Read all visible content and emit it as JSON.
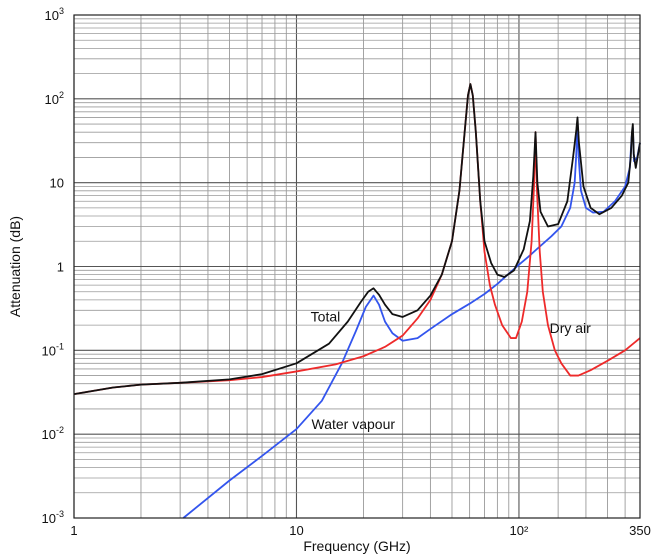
{
  "chart_data": {
    "type": "line",
    "xlabel": "Frequency (GHz)",
    "ylabel": "Attenuation (dB)",
    "x_scale": "log",
    "y_scale": "log",
    "xlim": [
      1,
      350
    ],
    "ylim": [
      0.001,
      1000
    ],
    "grid": true,
    "x_ticks": [
      {
        "value": 1,
        "label": "1"
      },
      {
        "value": 10,
        "label": "10"
      },
      {
        "value": 100,
        "label": "10²"
      },
      {
        "value": 350,
        "label": "350"
      }
    ],
    "y_ticks": [
      {
        "value": 0.001,
        "base": "10",
        "exp": "-3"
      },
      {
        "value": 0.01,
        "base": "10",
        "exp": "-2"
      },
      {
        "value": 0.1,
        "base": "10",
        "exp": "-1"
      },
      {
        "value": 1,
        "base": "1",
        "exp": ""
      },
      {
        "value": 10,
        "base": "10",
        "exp": ""
      },
      {
        "value": 100,
        "base": "10",
        "exp": "2"
      },
      {
        "value": 1000,
        "base": "10",
        "exp": "3"
      }
    ],
    "colors": {
      "total": "#111111",
      "dry_air": "#ee2a2a",
      "water_vapour": "#3355ee",
      "grid": "#9a9a9a",
      "frame": "#222222"
    },
    "series": [
      {
        "name": "Total",
        "key": "total",
        "points": [
          [
            1,
            0.03
          ],
          [
            1.5,
            0.036
          ],
          [
            2,
            0.039
          ],
          [
            3,
            0.041
          ],
          [
            5,
            0.045
          ],
          [
            7,
            0.052
          ],
          [
            10,
            0.07
          ],
          [
            14,
            0.12
          ],
          [
            17,
            0.22
          ],
          [
            19.5,
            0.38
          ],
          [
            21,
            0.5
          ],
          [
            22.2,
            0.55
          ],
          [
            23.5,
            0.46
          ],
          [
            25,
            0.35
          ],
          [
            27,
            0.27
          ],
          [
            30,
            0.25
          ],
          [
            35,
            0.3
          ],
          [
            40,
            0.45
          ],
          [
            45,
            0.8
          ],
          [
            50,
            2
          ],
          [
            54,
            8
          ],
          [
            57,
            40
          ],
          [
            59,
            110
          ],
          [
            60.5,
            150
          ],
          [
            62,
            110
          ],
          [
            64,
            40
          ],
          [
            67,
            6
          ],
          [
            70,
            2
          ],
          [
            75,
            1.1
          ],
          [
            80,
            0.8
          ],
          [
            86,
            0.75
          ],
          [
            95,
            0.9
          ],
          [
            105,
            1.6
          ],
          [
            112,
            3.5
          ],
          [
            116,
            12
          ],
          [
            118.7,
            40
          ],
          [
            121,
            10
          ],
          [
            125,
            4.5
          ],
          [
            135,
            3
          ],
          [
            150,
            3.2
          ],
          [
            165,
            6
          ],
          [
            175,
            20
          ],
          [
            181,
            42
          ],
          [
            183.3,
            60
          ],
          [
            186,
            30
          ],
          [
            195,
            9
          ],
          [
            210,
            5
          ],
          [
            230,
            4.2
          ],
          [
            260,
            5
          ],
          [
            290,
            7
          ],
          [
            310,
            10
          ],
          [
            318,
            20
          ],
          [
            322,
            40
          ],
          [
            325,
            50
          ],
          [
            328,
            22
          ],
          [
            335,
            15
          ],
          [
            350,
            30
          ]
        ]
      },
      {
        "name": "Dry air",
        "key": "dry_air",
        "points": [
          [
            1,
            0.03
          ],
          [
            1.5,
            0.036
          ],
          [
            2,
            0.039
          ],
          [
            3,
            0.041
          ],
          [
            5,
            0.044
          ],
          [
            7,
            0.048
          ],
          [
            10,
            0.056
          ],
          [
            15,
            0.068
          ],
          [
            20,
            0.085
          ],
          [
            25,
            0.11
          ],
          [
            30,
            0.15
          ],
          [
            35,
            0.24
          ],
          [
            40,
            0.4
          ],
          [
            45,
            0.8
          ],
          [
            50,
            2
          ],
          [
            54,
            8
          ],
          [
            57,
            40
          ],
          [
            59,
            110
          ],
          [
            60.5,
            150
          ],
          [
            62,
            110
          ],
          [
            64,
            40
          ],
          [
            67,
            6
          ],
          [
            70,
            1.5
          ],
          [
            74,
            0.6
          ],
          [
            78,
            0.35
          ],
          [
            84,
            0.2
          ],
          [
            92,
            0.14
          ],
          [
            97,
            0.14
          ],
          [
            103,
            0.22
          ],
          [
            109,
            0.5
          ],
          [
            114,
            2
          ],
          [
            117,
            10
          ],
          [
            118.7,
            40
          ],
          [
            120.5,
            8
          ],
          [
            124,
            1.5
          ],
          [
            128,
            0.5
          ],
          [
            135,
            0.2
          ],
          [
            145,
            0.1
          ],
          [
            155,
            0.07
          ],
          [
            170,
            0.05
          ],
          [
            185,
            0.05
          ],
          [
            210,
            0.058
          ],
          [
            250,
            0.075
          ],
          [
            300,
            0.1
          ],
          [
            350,
            0.14
          ]
        ]
      },
      {
        "name": "Water vapour",
        "key": "water_vapour",
        "points": [
          [
            3.1,
            0.001
          ],
          [
            5,
            0.0028
          ],
          [
            7,
            0.0055
          ],
          [
            10,
            0.0115
          ],
          [
            13,
            0.025
          ],
          [
            16,
            0.07
          ],
          [
            18.5,
            0.17
          ],
          [
            20.5,
            0.33
          ],
          [
            22.2,
            0.45
          ],
          [
            23.5,
            0.35
          ],
          [
            25,
            0.22
          ],
          [
            27,
            0.16
          ],
          [
            30,
            0.13
          ],
          [
            35,
            0.14
          ],
          [
            40,
            0.18
          ],
          [
            50,
            0.27
          ],
          [
            60,
            0.36
          ],
          [
            70,
            0.47
          ],
          [
            80,
            0.62
          ],
          [
            90,
            0.82
          ],
          [
            100,
            1.05
          ],
          [
            110,
            1.3
          ],
          [
            120,
            1.6
          ],
          [
            140,
            2.3
          ],
          [
            155,
            3
          ],
          [
            170,
            5
          ],
          [
            178,
            10
          ],
          [
            181,
            22
          ],
          [
            183.3,
            55
          ],
          [
            185.5,
            20
          ],
          [
            190,
            8
          ],
          [
            200,
            5
          ],
          [
            215,
            4.4
          ],
          [
            240,
            4.5
          ],
          [
            270,
            6
          ],
          [
            300,
            9
          ],
          [
            315,
            15
          ],
          [
            321,
            35
          ],
          [
            325,
            45
          ],
          [
            329,
            18
          ],
          [
            340,
            20
          ],
          [
            350,
            30
          ]
        ]
      }
    ],
    "annotations": [
      {
        "text": "Total",
        "series": "total",
        "at": [
          13.5,
          0.22
        ]
      },
      {
        "text": "Dry air",
        "series": "dry_air",
        "at": [
          170,
          0.16
        ]
      },
      {
        "text": "Water vapour",
        "series": "water_vapour",
        "at": [
          18,
          0.0115
        ]
      }
    ]
  }
}
